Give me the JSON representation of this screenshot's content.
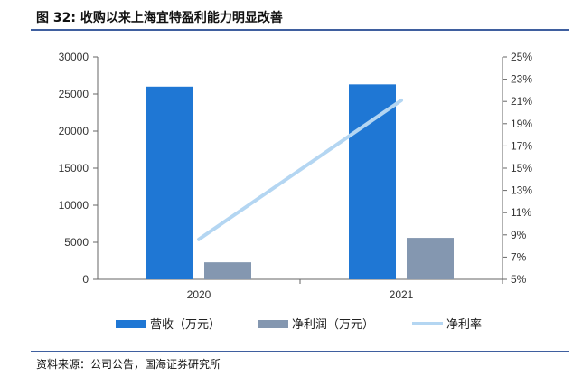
{
  "header": {
    "title": "图 32:  收购以来上海宜特盈利能力明显改善"
  },
  "chart_data": {
    "type": "bar",
    "categories": [
      "2020",
      "2021"
    ],
    "series": [
      {
        "name": "营收（万元）",
        "type": "bar",
        "axis": "left",
        "color": "#1f77d4",
        "values": [
          26000,
          26300
        ]
      },
      {
        "name": "净利润（万元）",
        "type": "bar",
        "axis": "left",
        "color": "#8497b0",
        "values": [
          2300,
          5600
        ]
      },
      {
        "name": "净利率",
        "type": "line",
        "axis": "right",
        "color": "#b4d6f2",
        "values": [
          8.6,
          21.1
        ]
      }
    ],
    "y_left": {
      "min": 0,
      "max": 30000,
      "ticks": [
        "0",
        "5000",
        "10000",
        "15000",
        "20000",
        "25000",
        "30000"
      ]
    },
    "y_right": {
      "min": 5,
      "max": 25,
      "ticks": [
        "5%",
        "7%",
        "9%",
        "11%",
        "13%",
        "15%",
        "17%",
        "19%",
        "21%",
        "23%",
        "25%"
      ]
    },
    "legend_position": "bottom",
    "grid": false
  },
  "footer": {
    "source": "资料来源：公司公告，国海证券研究所"
  }
}
